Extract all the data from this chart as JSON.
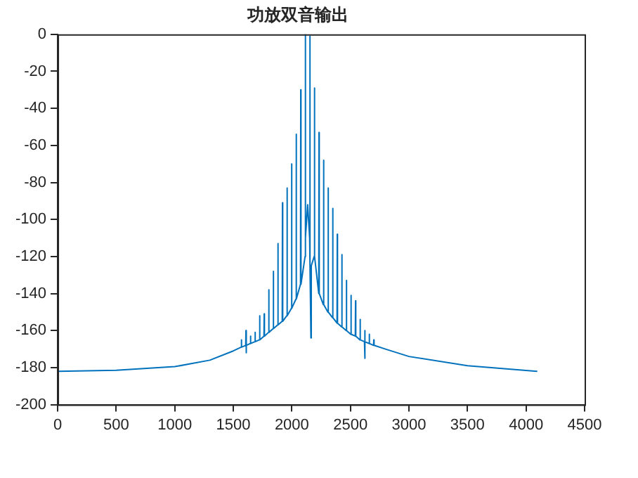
{
  "chart_data": {
    "type": "line",
    "title": "功放双音输出",
    "grid": false,
    "legend": false,
    "marker": "none",
    "line_style": "solid",
    "xlim": [
      0,
      4500
    ],
    "xticks": [
      0,
      500,
      1000,
      1500,
      2000,
      2500,
      3000,
      3500,
      4000,
      4500
    ],
    "ylim": [
      -200,
      0
    ],
    "yticks": [
      -200,
      -180,
      -160,
      -140,
      -120,
      -100,
      -80,
      -60,
      -40,
      -20,
      0
    ],
    "series": [
      {
        "color": "#0072bd",
        "x": [
          0,
          500,
          1000,
          1300,
          1500,
          1567,
          1569,
          1571,
          1606,
          1608,
          1610,
          1612,
          1645,
          1647,
          1649,
          1684,
          1686,
          1688,
          1723,
          1725,
          1727,
          1762,
          1764,
          1766,
          1801,
          1803,
          1805,
          1840,
          1842,
          1844,
          1879,
          1881,
          1883,
          1918,
          1920,
          1922,
          1957,
          1959,
          1961,
          1996,
          1998,
          2000,
          2035,
          2037,
          2039,
          2074,
          2076,
          2078,
          2113,
          2115,
          2117,
          2135,
          2152,
          2154,
          2156,
          2163,
          2166,
          2191,
          2193,
          2195,
          2230,
          2232,
          2234,
          2269,
          2271,
          2273,
          2308,
          2310,
          2312,
          2347,
          2349,
          2351,
          2386,
          2388,
          2390,
          2425,
          2427,
          2429,
          2464,
          2466,
          2468,
          2503,
          2505,
          2507,
          2542,
          2544,
          2546,
          2581,
          2583,
          2585,
          2620,
          2622,
          2624,
          2626,
          2659,
          2661,
          2663,
          2698,
          2700,
          2702,
          2800,
          3000,
          3500,
          4096
        ],
        "values": [
          -182,
          -181.5,
          -179.5,
          -176,
          -171,
          -169,
          -165,
          -169,
          -168,
          -160,
          -172,
          -168,
          -167,
          -163,
          -167,
          -166,
          -161,
          -166,
          -165,
          -152,
          -165,
          -163,
          -151,
          -163,
          -161,
          -138,
          -161,
          -159,
          -128,
          -159,
          -157,
          -113,
          -157,
          -155,
          -91,
          -155,
          -152,
          -83,
          -152,
          -148,
          -70,
          -148,
          -143,
          -54,
          -143,
          -135,
          -30,
          -135,
          -120,
          0,
          -110,
          -92,
          -110,
          -1,
          -125,
          -164,
          -125,
          -120,
          -29,
          -120,
          -140,
          -53,
          -140,
          -146,
          -68,
          -146,
          -150,
          -83,
          -150,
          -153,
          -94,
          -153,
          -156,
          -108,
          -156,
          -158,
          -119,
          -158,
          -160,
          -133,
          -160,
          -162,
          -141,
          -162,
          -163,
          -144,
          -163,
          -165,
          -154,
          -165,
          -166,
          -160,
          -175,
          -166,
          -167,
          -162,
          -167,
          -168,
          -165,
          -168,
          -170,
          -174,
          -179,
          -182
        ]
      }
    ]
  }
}
